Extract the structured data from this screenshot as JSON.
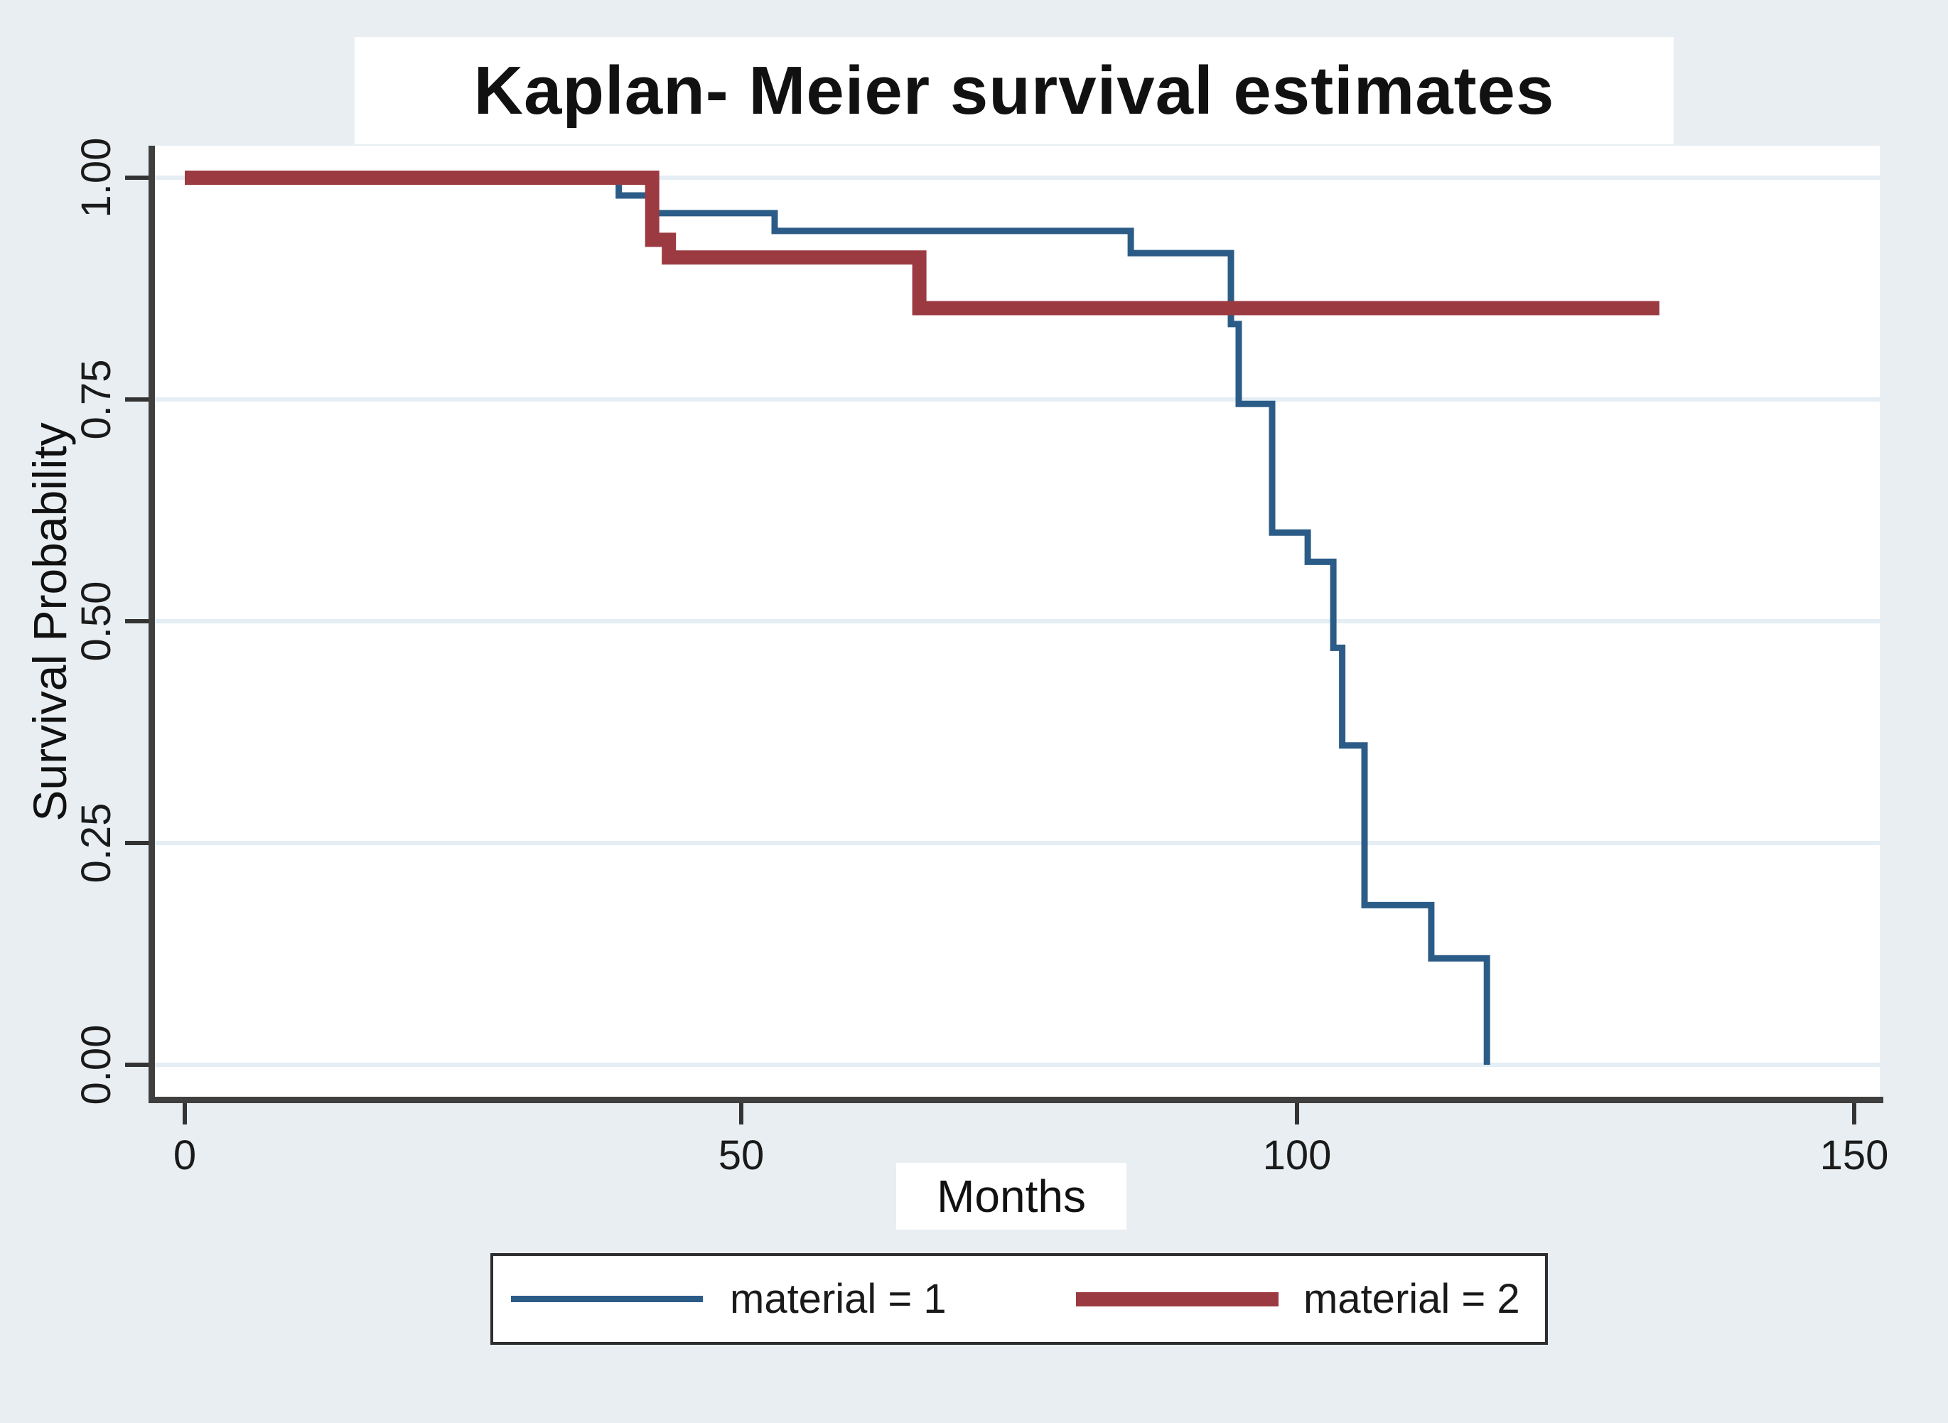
{
  "chart_data": {
    "type": "line",
    "subtype": "kaplan-meier-step",
    "title": "Kaplan- Meier survival estimates",
    "xlabel": "Months",
    "ylabel": "Survival Probability",
    "xlim": [
      0,
      152
    ],
    "ylim": [
      0,
      1
    ],
    "x_ticks": [
      0,
      50,
      100,
      150
    ],
    "x_tick_labels": [
      "0",
      "50",
      "100",
      "150"
    ],
    "y_ticks": [
      0.0,
      0.25,
      0.5,
      0.75,
      1.0
    ],
    "y_tick_labels": [
      "0.00",
      "0.25",
      "0.50",
      "0.75",
      "1.00"
    ],
    "grid": "horizontal gridlines at y ticks",
    "legend_position": "bottom-center",
    "legend": [
      {
        "label": "material = 1",
        "color": "#2b5c87"
      },
      {
        "label": "material = 2",
        "color": "#9c3a41"
      }
    ],
    "series": [
      {
        "name": "material = 1",
        "color": "#2b5c87",
        "line_width": 9,
        "points": [
          [
            0,
            1.0
          ],
          [
            39,
            1.0
          ],
          [
            39,
            0.98
          ],
          [
            42,
            0.98
          ],
          [
            42,
            0.96
          ],
          [
            53,
            0.96
          ],
          [
            53,
            0.94
          ],
          [
            85,
            0.94
          ],
          [
            85,
            0.915
          ],
          [
            94,
            0.915
          ],
          [
            94,
            0.835
          ],
          [
            94.7,
            0.835
          ],
          [
            94.7,
            0.745
          ],
          [
            97.7,
            0.745
          ],
          [
            97.7,
            0.6
          ],
          [
            100.9,
            0.6
          ],
          [
            100.9,
            0.567
          ],
          [
            103.2,
            0.567
          ],
          [
            103.2,
            0.47
          ],
          [
            104,
            0.47
          ],
          [
            104,
            0.36
          ],
          [
            106,
            0.36
          ],
          [
            106,
            0.18
          ],
          [
            112,
            0.18
          ],
          [
            112,
            0.12
          ],
          [
            117,
            0.12
          ],
          [
            117,
            0.0
          ]
        ]
      },
      {
        "name": "material = 2",
        "color": "#9c3a41",
        "line_width": 20,
        "points": [
          [
            0,
            1.0
          ],
          [
            42,
            1.0
          ],
          [
            42,
            0.93
          ],
          [
            43.5,
            0.93
          ],
          [
            43.5,
            0.91
          ],
          [
            66,
            0.91
          ],
          [
            66,
            0.853
          ],
          [
            132.5,
            0.853
          ]
        ]
      }
    ],
    "colors": {
      "background": "#e8eef2",
      "plot_background": "#ffffff",
      "gridline": "#e4eef4",
      "axis": "#3f3f3f",
      "text": "#1a1a1a"
    }
  }
}
